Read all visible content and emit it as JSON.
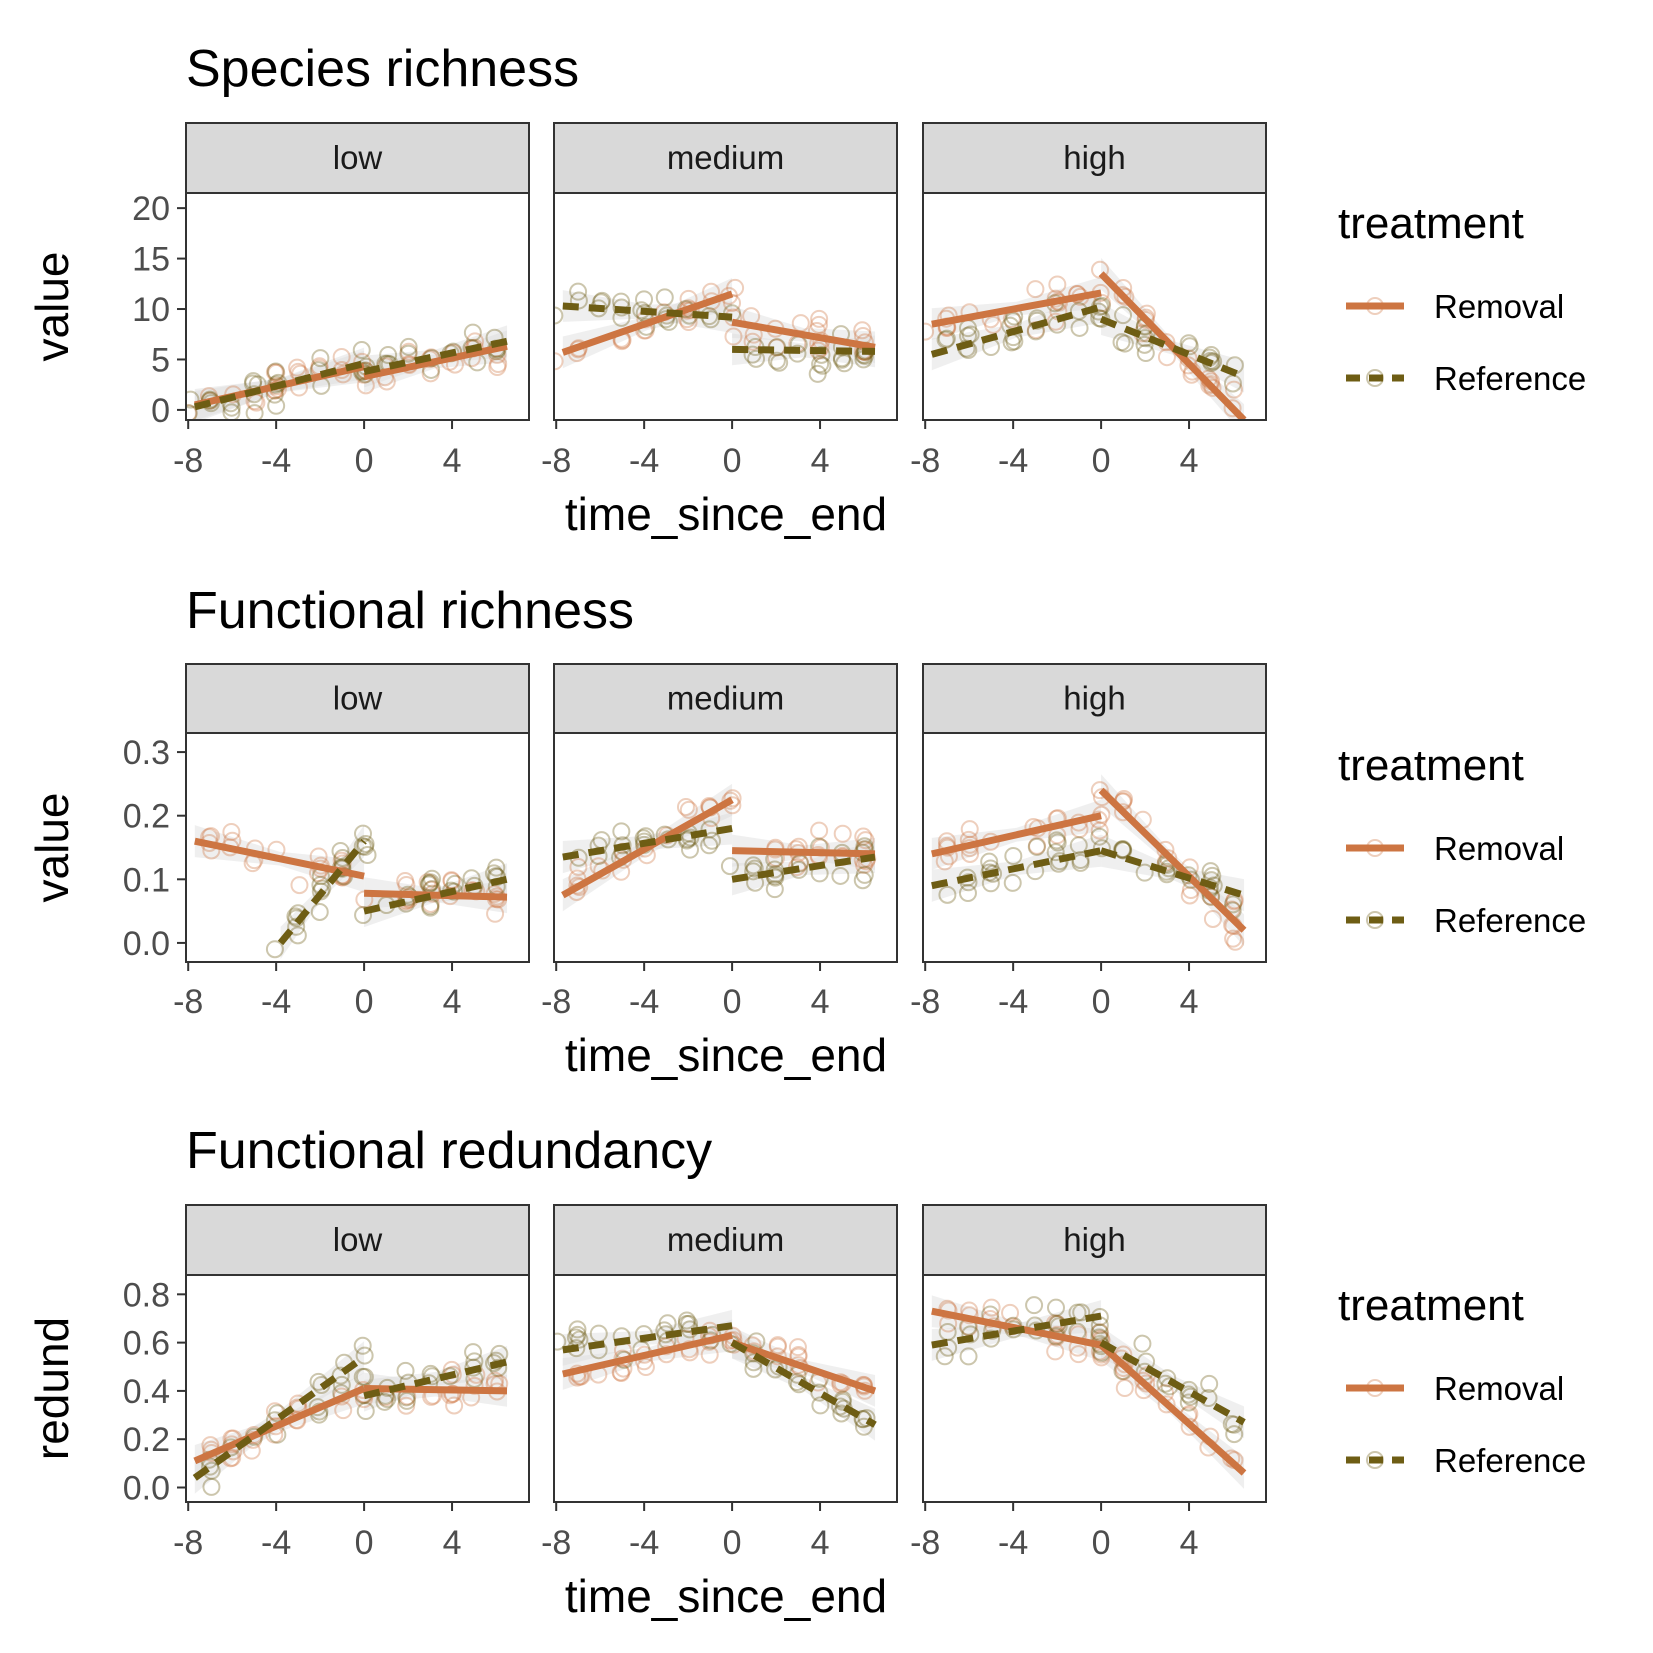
{
  "colors": {
    "Removal": "#cd7542",
    "Reference": "#6e5d14",
    "strip_bg": "#d9d9d9",
    "ribbon": "#dcdcdc",
    "axis_text": "#4d4d4d"
  },
  "chart_data": [
    {
      "type": "scatter",
      "title": "Species richness",
      "xlabel": "time_since_end",
      "ylabel": "value",
      "facets": [
        "low",
        "medium",
        "high"
      ],
      "xlim": [
        -8.1,
        7.5
      ],
      "xticks": [
        -8,
        -4,
        0,
        4
      ],
      "ylim": [
        -1,
        21.5
      ],
      "yticks": [
        0,
        5,
        10,
        15,
        20
      ],
      "ytick_labels": [
        "0",
        "5",
        "10",
        "15",
        "20"
      ],
      "fits": {
        "low": {
          "Removal": [
            [
              [
                -7.7,
                0.5
              ],
              [
                0,
                4.3
              ]
            ],
            [
              [
                0,
                3.3
              ],
              [
                6.5,
                6.3
              ]
            ]
          ],
          "Reference": [
            [
              [
                -7.7,
                0.3
              ],
              [
                0,
                4.6
              ]
            ],
            [
              [
                0,
                3.8
              ],
              [
                6.5,
                6.8
              ]
            ]
          ]
        },
        "medium": {
          "Removal": [
            [
              [
                -7.7,
                5.7
              ],
              [
                0,
                11.5
              ]
            ],
            [
              [
                0,
                8.7
              ],
              [
                6.5,
                6.2
              ]
            ]
          ],
          "Reference": [
            [
              [
                -7.7,
                10.3
              ],
              [
                0,
                9.2
              ]
            ],
            [
              [
                0,
                6.0
              ],
              [
                6.5,
                5.8
              ]
            ]
          ]
        },
        "high": {
          "Removal": [
            [
              [
                -7.7,
                8.5
              ],
              [
                0,
                11.6
              ]
            ],
            [
              [
                0,
                13.5
              ],
              [
                6.5,
                -1.0
              ]
            ]
          ],
          "Reference": [
            [
              [
                -7.7,
                5.5
              ],
              [
                0,
                10.2
              ]
            ],
            [
              [
                0,
                9.0
              ],
              [
                6.5,
                3.3
              ]
            ]
          ]
        }
      }
    },
    {
      "type": "scatter",
      "title": "Functional richness",
      "xlabel": "time_since_end",
      "ylabel": "value",
      "facets": [
        "low",
        "medium",
        "high"
      ],
      "xlim": [
        -8.1,
        7.5
      ],
      "xticks": [
        -8,
        -4,
        0,
        4
      ],
      "ylim": [
        -0.03,
        0.33
      ],
      "yticks": [
        0,
        0.1,
        0.2,
        0.3
      ],
      "ytick_labels": [
        "0.0",
        "0.1",
        "0.2",
        "0.3"
      ],
      "fits": {
        "low": {
          "Removal": [
            [
              [
                -7.7,
                0.16
              ],
              [
                0,
                0.105
              ]
            ],
            [
              [
                0,
                0.078
              ],
              [
                6.5,
                0.072
              ]
            ]
          ],
          "Reference": [
            [
              [
                -3.8,
                0.0
              ],
              [
                0,
                0.16
              ]
            ],
            [
              [
                0,
                0.05
              ],
              [
                6.5,
                0.1
              ]
            ]
          ]
        },
        "medium": {
          "Removal": [
            [
              [
                -7.7,
                0.075
              ],
              [
                0,
                0.225
              ]
            ],
            [
              [
                0,
                0.145
              ],
              [
                6.5,
                0.14
              ]
            ]
          ],
          "Reference": [
            [
              [
                -7.7,
                0.135
              ],
              [
                0,
                0.18
              ]
            ],
            [
              [
                0,
                0.1
              ],
              [
                6.5,
                0.135
              ]
            ]
          ]
        },
        "high": {
          "Removal": [
            [
              [
                -7.7,
                0.14
              ],
              [
                0,
                0.2
              ]
            ],
            [
              [
                0,
                0.24
              ],
              [
                6.5,
                0.02
              ]
            ]
          ],
          "Reference": [
            [
              [
                -7.7,
                0.09
              ],
              [
                0,
                0.145
              ]
            ],
            [
              [
                0,
                0.145
              ],
              [
                6.5,
                0.075
              ]
            ]
          ]
        }
      }
    },
    {
      "type": "scatter",
      "title": "Functional redundancy",
      "xlabel": "time_since_end",
      "ylabel": "redund",
      "facets": [
        "low",
        "medium",
        "high"
      ],
      "xlim": [
        -8.1,
        7.5
      ],
      "xticks": [
        -8,
        -4,
        0,
        4
      ],
      "ylim": [
        -0.06,
        0.88
      ],
      "yticks": [
        0,
        0.2,
        0.4,
        0.6,
        0.8
      ],
      "ytick_labels": [
        "0.0",
        "0.2",
        "0.4",
        "0.6",
        "0.8"
      ],
      "fits": {
        "low": {
          "Removal": [
            [
              [
                -7.7,
                0.11
              ],
              [
                0,
                0.41
              ]
            ],
            [
              [
                0,
                0.41
              ],
              [
                6.5,
                0.4
              ]
            ]
          ],
          "Reference": [
            [
              [
                -7.7,
                0.04
              ],
              [
                0,
                0.54
              ]
            ],
            [
              [
                0,
                0.38
              ],
              [
                6.5,
                0.52
              ]
            ]
          ]
        },
        "medium": {
          "Removal": [
            [
              [
                -7.7,
                0.47
              ],
              [
                0,
                0.63
              ]
            ],
            [
              [
                0,
                0.6
              ],
              [
                6.5,
                0.4
              ]
            ]
          ],
          "Reference": [
            [
              [
                -7.7,
                0.57
              ],
              [
                0,
                0.67
              ]
            ],
            [
              [
                0,
                0.6
              ],
              [
                6.5,
                0.26
              ]
            ]
          ]
        },
        "high": {
          "Removal": [
            [
              [
                -7.7,
                0.73
              ],
              [
                0,
                0.59
              ]
            ],
            [
              [
                0,
                0.59
              ],
              [
                6.5,
                0.06
              ]
            ]
          ],
          "Reference": [
            [
              [
                -7.7,
                0.59
              ],
              [
                0,
                0.71
              ]
            ],
            [
              [
                0,
                0.6
              ],
              [
                6.5,
                0.27
              ]
            ]
          ]
        }
      }
    }
  ],
  "legend": {
    "title": "treatment",
    "items": [
      "Removal",
      "Reference"
    ]
  }
}
